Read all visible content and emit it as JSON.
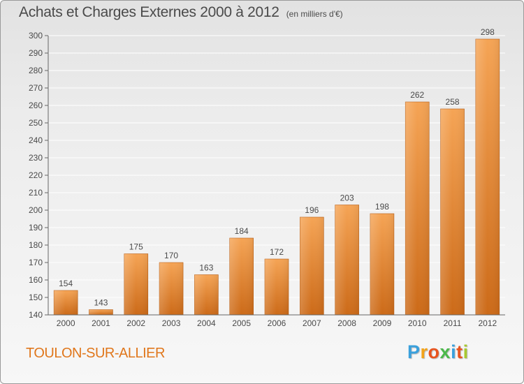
{
  "header": {
    "title": "Achats et Charges Externes 2000 à 2012",
    "subtitle": "(en milliers d'€)"
  },
  "footer": {
    "city": "TOULON-SUR-ALLIER",
    "logo_letters": [
      {
        "ch": "P",
        "color": "#3aa0dc"
      },
      {
        "ch": "r",
        "color": "#f2a31b"
      },
      {
        "ch": "o",
        "color": "#e8531e"
      },
      {
        "ch": "x",
        "color": "#4bb84a"
      },
      {
        "ch": "i",
        "color": "#3aa0dc"
      },
      {
        "ch": "t",
        "color": "#e8531e"
      },
      {
        "ch": "i",
        "color": "#a7c82f"
      }
    ]
  },
  "colors": {
    "bar_light": "#f5a455",
    "bar_dark": "#cc6a18",
    "grid": "#ffffff",
    "text": "#4a4a4a",
    "city": "#e0771c"
  },
  "chart_data": {
    "type": "bar",
    "categories": [
      "2000",
      "2001",
      "2002",
      "2003",
      "2004",
      "2005",
      "2006",
      "2007",
      "2008",
      "2009",
      "2010",
      "2011",
      "2012"
    ],
    "values": [
      154,
      143,
      175,
      170,
      163,
      184,
      172,
      196,
      203,
      198,
      262,
      258,
      298
    ],
    "data_labels": [
      "154",
      "143",
      "175",
      "170",
      "163",
      "184",
      "172",
      "196",
      "203",
      "198",
      "262",
      "258",
      "298"
    ],
    "yticks": [
      140,
      150,
      160,
      170,
      180,
      190,
      200,
      210,
      220,
      230,
      240,
      250,
      260,
      270,
      280,
      290,
      300
    ],
    "ylim": [
      140,
      300
    ],
    "grid": true,
    "legend": "none"
  }
}
